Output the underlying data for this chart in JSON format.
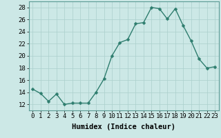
{
  "x": [
    0,
    1,
    2,
    3,
    4,
    5,
    6,
    7,
    8,
    9,
    10,
    11,
    12,
    13,
    14,
    15,
    16,
    17,
    18,
    19,
    20,
    21,
    22,
    23
  ],
  "y": [
    14.5,
    13.8,
    12.5,
    13.7,
    12.0,
    12.2,
    12.2,
    12.2,
    14.0,
    16.2,
    20.0,
    22.2,
    22.7,
    25.3,
    25.5,
    28.0,
    27.8,
    26.1,
    27.8,
    25.0,
    22.5,
    19.5,
    18.0,
    18.2
  ],
  "line_color": "#2e7d6e",
  "marker_color": "#2e7d6e",
  "bg_color": "#cce8e6",
  "grid_color": "#aacfcc",
  "xlabel": "Humidex (Indice chaleur)",
  "ylim": [
    11,
    29
  ],
  "xlim": [
    -0.5,
    23.5
  ],
  "yticks": [
    12,
    14,
    16,
    18,
    20,
    22,
    24,
    26,
    28
  ],
  "xticks": [
    0,
    1,
    2,
    3,
    4,
    5,
    6,
    7,
    8,
    9,
    10,
    11,
    12,
    13,
    14,
    15,
    16,
    17,
    18,
    19,
    20,
    21,
    22,
    23
  ],
  "xlabel_fontsize": 7.5,
  "tick_fontsize": 6.5,
  "line_width": 1.0,
  "marker_size": 2.5
}
